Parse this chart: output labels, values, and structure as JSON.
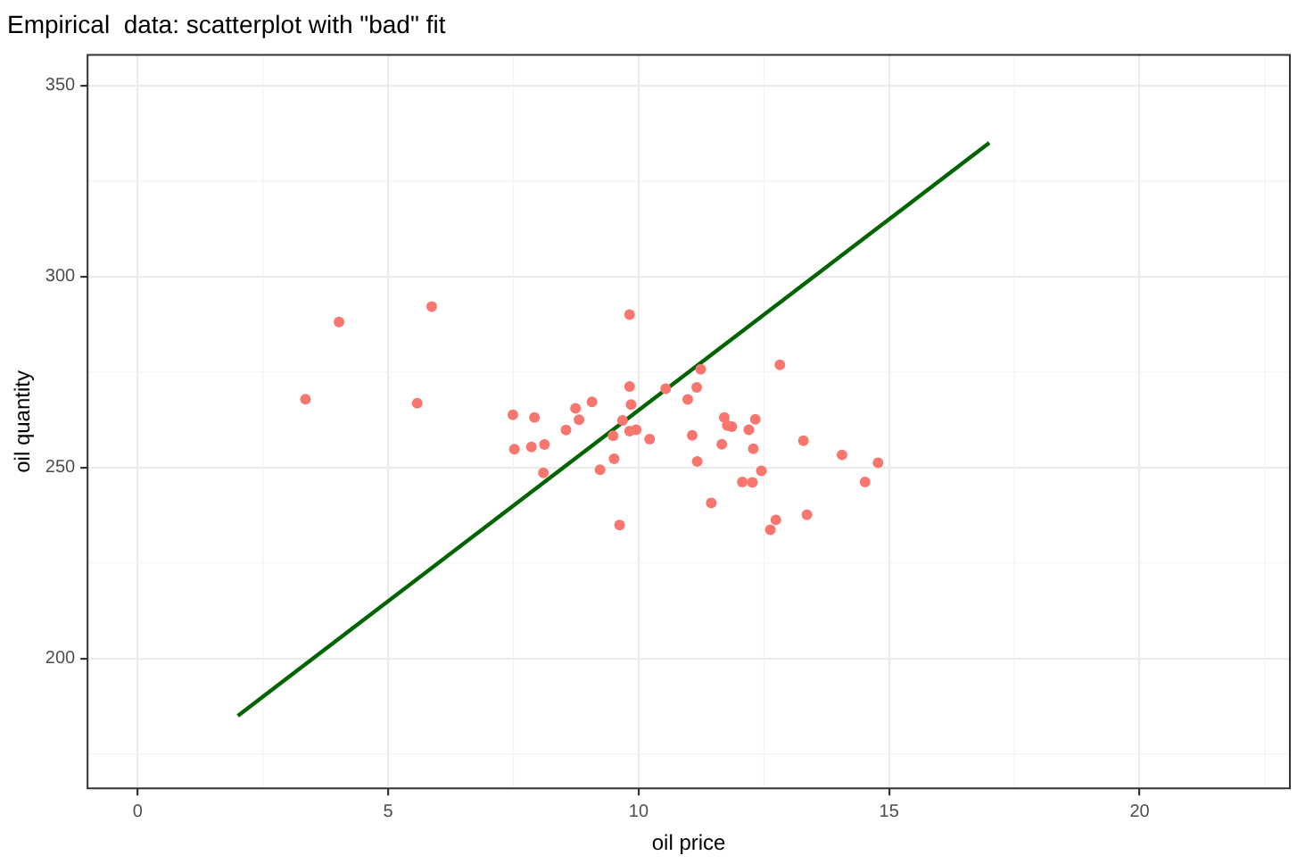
{
  "chart_data": {
    "type": "scatter",
    "title": "Empirical  data: scatterplot with \"bad\" fit",
    "xlabel": "oil price",
    "ylabel": "oil quantity",
    "xlim": [
      -1,
      23
    ],
    "ylim": [
      166,
      358
    ],
    "xticks": [
      0,
      5,
      10,
      15,
      20
    ],
    "yticks": [
      200,
      250,
      300,
      350
    ],
    "grid": true,
    "legend": false,
    "marker": "circle",
    "series": [
      {
        "color": "#f8766d",
        "x": [
          4.02,
          5.87,
          3.35,
          5.58,
          7.49,
          7.92,
          8.74,
          9.07,
          8.81,
          8.55,
          7.52,
          7.86,
          8.12,
          8.1,
          9.49,
          9.51,
          9.23,
          9.62,
          9.82,
          9.82,
          9.85,
          10.54,
          11.24,
          11.16,
          10.98,
          12.82,
          9.68,
          9.82,
          9.95,
          10.22,
          11.07,
          11.17,
          11.45,
          11.66,
          11.71,
          11.77,
          11.86,
          12.2,
          12.33,
          12.29,
          12.45,
          12.07,
          12.27,
          12.74,
          12.63,
          13.36,
          13.29,
          14.06,
          14.52,
          14.78
        ],
        "values": [
          288.1,
          292.1,
          267.9,
          266.8,
          263.8,
          263.1,
          265.5,
          267.2,
          262.5,
          259.8,
          254.8,
          255.4,
          256.0,
          248.6,
          258.3,
          252.3,
          249.4,
          234.9,
          290.0,
          271.2,
          266.5,
          270.6,
          275.7,
          271.0,
          267.8,
          276.9,
          262.3,
          259.5,
          259.9,
          257.4,
          258.4,
          251.6,
          240.7,
          256.1,
          263.1,
          261.0,
          260.7,
          259.9,
          262.6,
          254.9,
          249.1,
          246.2,
          246.1,
          236.3,
          233.7,
          237.6,
          257.0,
          253.3,
          246.2,
          251.2
        ]
      },
      {
        "type": "line",
        "color": "#006400",
        "x": [
          2,
          17
        ],
        "values": [
          185,
          335
        ],
        "marker": "none",
        "line_style": "solid"
      }
    ]
  }
}
